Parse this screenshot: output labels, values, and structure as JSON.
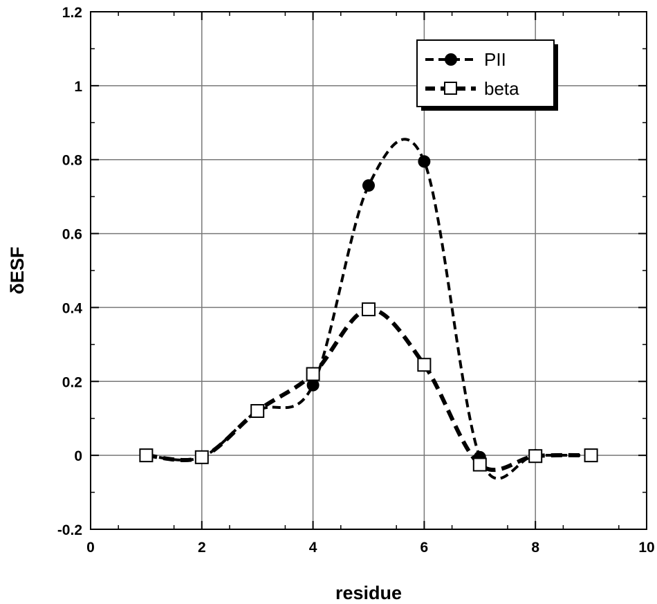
{
  "chart_data": {
    "type": "line",
    "xlabel": "residue",
    "ylabel": "δESF",
    "xlim": [
      0,
      10
    ],
    "ylim": [
      -0.2,
      1.2
    ],
    "x_ticks": [
      "0",
      "2",
      "4",
      "6",
      "8",
      "10"
    ],
    "y_ticks": [
      "-0.2",
      "0",
      "0.2",
      "0.4",
      "0.6",
      "0.8",
      "1",
      "1.2"
    ],
    "grid": true,
    "legend_position": "top-right",
    "series": [
      {
        "name": "PII",
        "marker": "filled-circle",
        "line": "dashed-thin",
        "color": "#000000",
        "x": [
          1,
          2,
          3,
          4,
          5,
          6,
          7,
          8,
          9
        ],
        "y": [
          0.0,
          -0.005,
          0.12,
          0.19,
          0.73,
          0.795,
          -0.005,
          0.0,
          0.0
        ]
      },
      {
        "name": "beta",
        "marker": "open-square",
        "line": "dashed-thick",
        "color": "#000000",
        "x": [
          1,
          2,
          3,
          4,
          5,
          6,
          7,
          8,
          9
        ],
        "y": [
          0.0,
          -0.005,
          0.12,
          0.22,
          0.395,
          0.245,
          -0.025,
          -0.002,
          0.0
        ]
      }
    ]
  }
}
